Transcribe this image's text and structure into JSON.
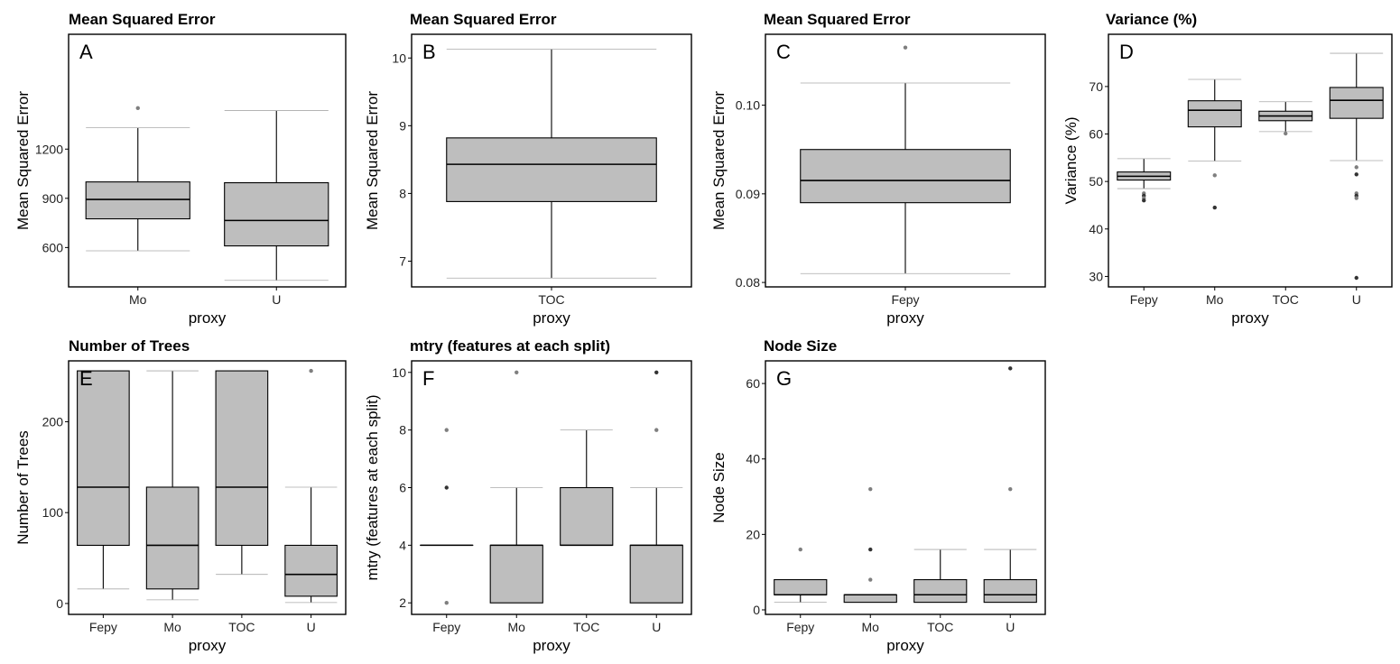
{
  "chart_data": [
    {
      "id": "A",
      "type": "box",
      "title": "Mean Squared Error",
      "letter": "A",
      "xlabel": "proxy",
      "ylabel": "Mean Squared Error",
      "categories": [
        "Mo",
        "U"
      ],
      "ylim": [
        360,
        1900
      ],
      "yticks": [
        600,
        900,
        1200
      ],
      "ytick_labels": [
        "600",
        "900",
        "1200"
      ],
      "boxes": [
        {
          "category": "Mo",
          "min": 580,
          "q1": 775,
          "median": 893,
          "q3": 1000,
          "max": 1330,
          "outliers": [
            1450
          ]
        },
        {
          "category": "U",
          "min": 400,
          "q1": 610,
          "median": 765,
          "q3": 995,
          "max": 1435,
          "outliers": []
        }
      ]
    },
    {
      "id": "B",
      "type": "box",
      "title": "Mean Squared Error",
      "letter": "B",
      "xlabel": "proxy",
      "ylabel": "Mean Squared Error",
      "categories": [
        "TOC"
      ],
      "ylim": [
        6.62,
        10.35
      ],
      "yticks": [
        7,
        8,
        9,
        10
      ],
      "ytick_labels": [
        "7",
        "8",
        "9",
        "10"
      ],
      "boxes": [
        {
          "category": "TOC",
          "min": 6.75,
          "q1": 7.88,
          "median": 8.43,
          "q3": 8.82,
          "max": 10.13,
          "outliers": []
        }
      ]
    },
    {
      "id": "C",
      "type": "box",
      "title": "Mean Squared Error",
      "letter": "C",
      "xlabel": "proxy",
      "ylabel": "Mean Squared Error",
      "categories": [
        "Fepy"
      ],
      "ylim": [
        0.0795,
        0.108
      ],
      "yticks": [
        0.08,
        0.09,
        0.1
      ],
      "ytick_labels": [
        "0.08",
        "0.09",
        "0.10"
      ],
      "boxes": [
        {
          "category": "Fepy",
          "min": 0.081,
          "q1": 0.089,
          "median": 0.0915,
          "q3": 0.095,
          "max": 0.1025,
          "outliers": [
            0.1065
          ]
        }
      ]
    },
    {
      "id": "D",
      "type": "box",
      "title": "Variance (%)",
      "letter": "D",
      "xlabel": "proxy",
      "ylabel": "Variance (%)",
      "categories": [
        "Fepy",
        "Mo",
        "TOC",
        "U"
      ],
      "ylim": [
        27.8,
        81
      ],
      "yticks": [
        30,
        40,
        50,
        60,
        70
      ],
      "ytick_labels": [
        "30",
        "40",
        "50",
        "60",
        "70"
      ],
      "boxes": [
        {
          "category": "Fepy",
          "min": 48.5,
          "q1": 50.3,
          "median": 51.1,
          "q3": 52.0,
          "max": 54.8,
          "outliers": [
            47.5,
            47.0,
            46.5,
            46.0
          ]
        },
        {
          "category": "Mo",
          "min": 54.3,
          "q1": 61.5,
          "median": 65.0,
          "q3": 67.0,
          "max": 71.5,
          "outliers": [
            51.3,
            44.5
          ]
        },
        {
          "category": "TOC",
          "min": 60.5,
          "q1": 62.8,
          "median": 63.8,
          "q3": 64.8,
          "max": 66.8,
          "outliers": [
            60.1
          ]
        },
        {
          "category": "U",
          "min": 54.4,
          "q1": 63.3,
          "median": 67.1,
          "q3": 69.8,
          "max": 77.0,
          "outliers": [
            53.0,
            51.5,
            47.5,
            47.0,
            46.5,
            29.7
          ]
        }
      ]
    },
    {
      "id": "E",
      "type": "box",
      "title": "Number of Trees",
      "letter": "E",
      "xlabel": "proxy",
      "ylabel": "Number of Trees",
      "categories": [
        "Fepy",
        "Mo",
        "TOC",
        "U"
      ],
      "ylim": [
        -12,
        267
      ],
      "yticks": [
        0,
        100,
        200
      ],
      "ytick_labels": [
        "0",
        "100",
        "200"
      ],
      "boxes": [
        {
          "category": "Fepy",
          "min": 16,
          "q1": 64,
          "median": 128,
          "q3": 256,
          "max": 256,
          "outliers": []
        },
        {
          "category": "Mo",
          "min": 4,
          "q1": 16,
          "median": 64,
          "q3": 128,
          "max": 256,
          "outliers": []
        },
        {
          "category": "TOC",
          "min": 32,
          "q1": 64,
          "median": 128,
          "q3": 256,
          "max": 256,
          "outliers": []
        },
        {
          "category": "U",
          "min": 1,
          "q1": 8,
          "median": 32,
          "q3": 64,
          "max": 128,
          "outliers": [
            256
          ]
        }
      ]
    },
    {
      "id": "F",
      "type": "box",
      "title": "mtry (features at each split)",
      "letter": "F",
      "xlabel": "proxy",
      "ylabel": "mtry (features at each split)",
      "categories": [
        "Fepy",
        "Mo",
        "TOC",
        "U"
      ],
      "ylim": [
        1.6,
        10.4
      ],
      "yticks": [
        2,
        4,
        6,
        8,
        10
      ],
      "ytick_labels": [
        "2",
        "4",
        "6",
        "8",
        "10"
      ],
      "boxes": [
        {
          "category": "Fepy",
          "min": 4,
          "q1": 4,
          "median": 4,
          "q3": 4,
          "max": 4,
          "outliers": [
            2,
            6,
            8
          ]
        },
        {
          "category": "Mo",
          "min": 2,
          "q1": 2,
          "median": 4,
          "q3": 4,
          "max": 6,
          "outliers": [
            10
          ]
        },
        {
          "category": "TOC",
          "min": 4,
          "q1": 4,
          "median": 4,
          "q3": 6,
          "max": 8,
          "outliers": []
        },
        {
          "category": "U",
          "min": 2,
          "q1": 2,
          "median": 4,
          "q3": 4,
          "max": 6,
          "outliers": [
            8,
            10
          ]
        }
      ]
    },
    {
      "id": "G",
      "type": "box",
      "title": "Node Size",
      "letter": "G",
      "xlabel": "proxy",
      "ylabel": "Node Size",
      "categories": [
        "Fepy",
        "Mo",
        "TOC",
        "U"
      ],
      "ylim": [
        -1.2,
        66
      ],
      "yticks": [
        0,
        20,
        40,
        60
      ],
      "ytick_labels": [
        "0",
        "20",
        "40",
        "60"
      ],
      "boxes": [
        {
          "category": "Fepy",
          "min": 2,
          "q1": 4,
          "median": 4,
          "q3": 8,
          "max": 8,
          "outliers": [
            16
          ]
        },
        {
          "category": "Mo",
          "min": 2,
          "q1": 2,
          "median": 4,
          "q3": 4,
          "max": 4,
          "outliers": [
            8,
            16,
            32
          ]
        },
        {
          "category": "TOC",
          "min": 2,
          "q1": 2,
          "median": 4,
          "q3": 8,
          "max": 16,
          "outliers": []
        },
        {
          "category": "U",
          "min": 2,
          "q1": 2,
          "median": 4,
          "q3": 8,
          "max": 16,
          "outliers": [
            32,
            64
          ]
        }
      ]
    }
  ],
  "colors": {
    "box_fill": "#bebebe",
    "outlier": "#7f7f7f",
    "outlier_dark": "#333333",
    "frame": "#000000"
  }
}
